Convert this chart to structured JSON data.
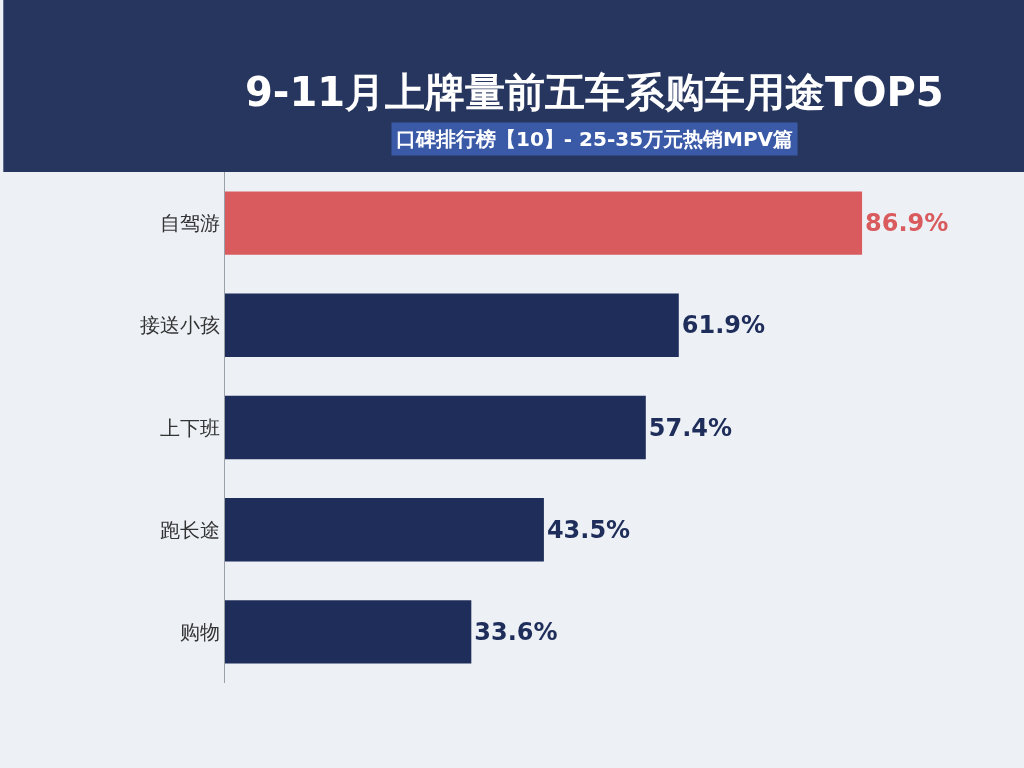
{
  "chart_data": {
    "type": "bar",
    "orientation": "horizontal",
    "title": "9-11月上牌量前五车系购车用途TOP5",
    "subtitle": "口碑排行榜【10】- 25-35万元热销MPV篇",
    "categories": [
      "自驾游",
      "接送小孩",
      "上下班",
      "跑长途",
      "购物"
    ],
    "values": [
      86.9,
      61.9,
      57.4,
      43.5,
      33.6
    ],
    "value_labels": [
      "86.9%",
      "61.9%",
      "57.4%",
      "43.5%",
      "33.6%"
    ],
    "colors": [
      "#d95b5e",
      "#1f2d5a",
      "#1f2d5a",
      "#1f2d5a",
      "#1f2d5a"
    ],
    "legend": false
  }
}
